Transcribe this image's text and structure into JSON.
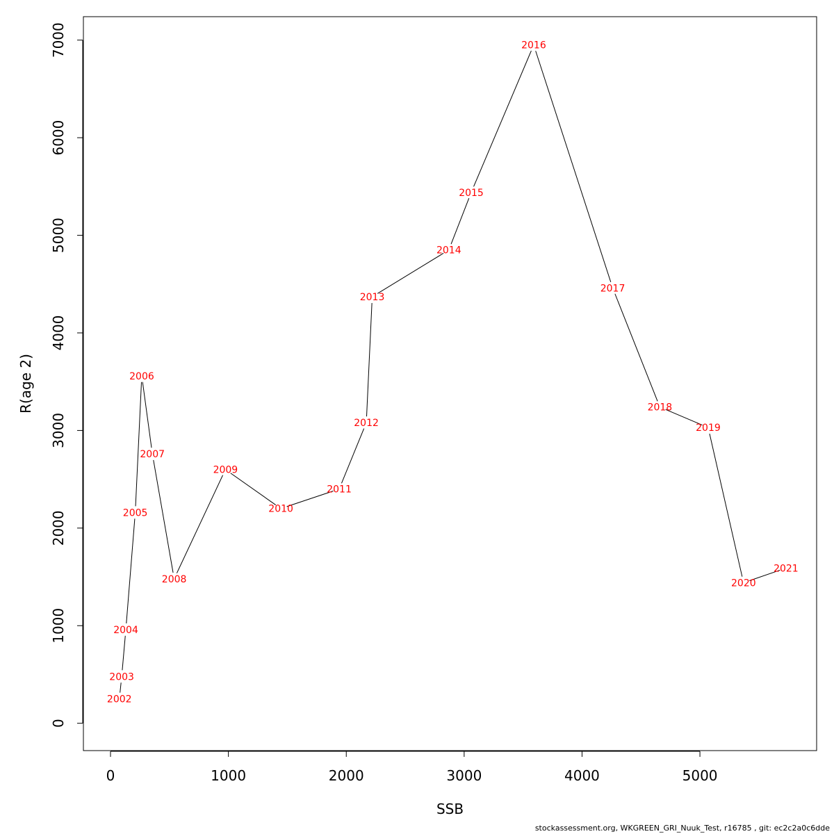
{
  "chart_data": {
    "type": "line",
    "title": "",
    "xlabel": "SSB",
    "ylabel": "R(age 2)",
    "xlim": [
      -230,
      5990
    ],
    "ylim": [
      -280,
      7240
    ],
    "xticks": [
      0,
      1000,
      2000,
      3000,
      4000,
      5000
    ],
    "yticks": [
      0,
      1000,
      2000,
      3000,
      4000,
      5000,
      6000,
      7000
    ],
    "grid": false,
    "line_color": "#000000",
    "label_color": "#ff0000",
    "points": [
      {
        "label": "2002",
        "x": 75,
        "y": 250
      },
      {
        "label": "2003",
        "x": 95,
        "y": 480
      },
      {
        "label": "2004",
        "x": 130,
        "y": 960
      },
      {
        "label": "2005",
        "x": 210,
        "y": 2160
      },
      {
        "label": "2006",
        "x": 265,
        "y": 3560
      },
      {
        "label": "2007",
        "x": 355,
        "y": 2760
      },
      {
        "label": "2008",
        "x": 540,
        "y": 1480
      },
      {
        "label": "2009",
        "x": 975,
        "y": 2600
      },
      {
        "label": "2010",
        "x": 1445,
        "y": 2200
      },
      {
        "label": "2011",
        "x": 1940,
        "y": 2400
      },
      {
        "label": "2012",
        "x": 2170,
        "y": 3080
      },
      {
        "label": "2013",
        "x": 2220,
        "y": 4370
      },
      {
        "label": "2014",
        "x": 2870,
        "y": 4850
      },
      {
        "label": "2015",
        "x": 3060,
        "y": 5440
      },
      {
        "label": "2016",
        "x": 3590,
        "y": 6950
      },
      {
        "label": "2017",
        "x": 4260,
        "y": 4460
      },
      {
        "label": "2018",
        "x": 4660,
        "y": 3240
      },
      {
        "label": "2019",
        "x": 5070,
        "y": 3030
      },
      {
        "label": "2020",
        "x": 5370,
        "y": 1440
      },
      {
        "label": "2021",
        "x": 5730,
        "y": 1590
      }
    ]
  },
  "footer": {
    "text": "stockassessment.org, WKGREEN_GRI_Nuuk_Test, r16785 , git: ec2c2a0c6dde"
  }
}
